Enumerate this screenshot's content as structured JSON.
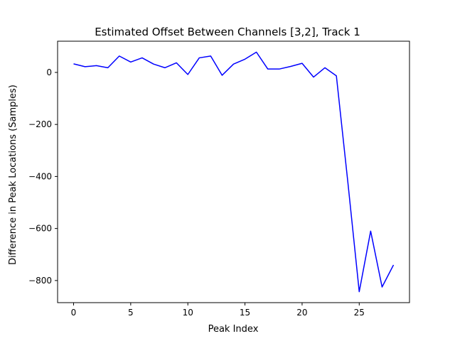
{
  "chart_data": {
    "type": "line",
    "title": "Estimated Offset Between Channels [3,2], Track 1",
    "xlabel": "Peak Index",
    "ylabel": "Difference in Peak Locations (Samples)",
    "xlim": [
      -1.4,
      29.4
    ],
    "ylim": [
      -885,
      120
    ],
    "xticks": [
      0,
      5,
      10,
      15,
      20,
      25
    ],
    "yticks": [
      -800,
      -600,
      -400,
      -200,
      0
    ],
    "grid": false,
    "color": "#0000ff",
    "series": [
      {
        "x": [
          0,
          1,
          2,
          3,
          4,
          5,
          6,
          7,
          8,
          9,
          10,
          11,
          12,
          13,
          14,
          15,
          16,
          17,
          18,
          19,
          20,
          21,
          22,
          23,
          24,
          25,
          26,
          27,
          28
        ],
        "values": [
          33,
          22,
          26,
          18,
          63,
          40,
          56,
          32,
          18,
          37,
          -8,
          56,
          63,
          -11,
          32,
          51,
          78,
          13,
          13,
          23,
          35,
          -18,
          18,
          -13,
          -420,
          -843,
          -610,
          -825,
          -740
        ]
      }
    ]
  }
}
